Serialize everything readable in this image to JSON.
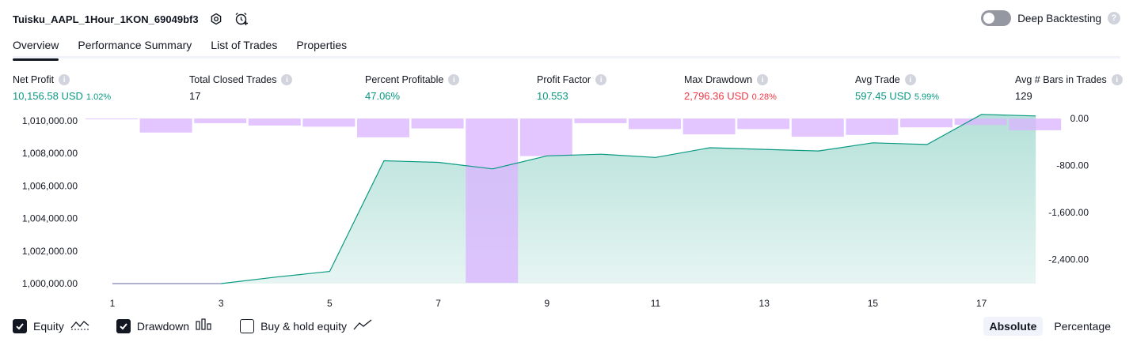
{
  "header": {
    "strategy_title": "Tuisku_AAPL_1Hour_1KON_69049bf3",
    "deep_backtesting_label": "Deep Backtesting",
    "help_glyph": "?"
  },
  "tabs": [
    {
      "label": "Overview",
      "active": true
    },
    {
      "label": "Performance Summary",
      "active": false
    },
    {
      "label": "List of Trades",
      "active": false
    },
    {
      "label": "Properties",
      "active": false
    }
  ],
  "metrics": [
    {
      "label": "Net Profit",
      "value": "10,156.58 USD",
      "pct": "1.02%",
      "color": "#089981"
    },
    {
      "label": "Total Closed Trades",
      "value": "17",
      "pct": "",
      "color": "#131722"
    },
    {
      "label": "Percent Profitable",
      "value": "47.06%",
      "pct": "",
      "color": "#089981"
    },
    {
      "label": "Profit Factor",
      "value": "10.553",
      "pct": "",
      "color": "#089981"
    },
    {
      "label": "Max Drawdown",
      "value": "2,796.36 USD",
      "pct": "0.28%",
      "color": "#f23645"
    },
    {
      "label": "Avg Trade",
      "value": "597.45 USD",
      "pct": "5.99%",
      "color": "#089981"
    },
    {
      "label": "Avg # Bars in Trades",
      "value": "129",
      "pct": "",
      "color": "#131722"
    }
  ],
  "chart_data": {
    "type": "line",
    "x_ticks": [
      "1",
      "3",
      "5",
      "7",
      "9",
      "11",
      "13",
      "15",
      "17"
    ],
    "left_axis": {
      "ticks": [
        "1,010,000.00",
        "1,008,000.00",
        "1,006,000.00",
        "1,004,000.00",
        "1,002,000.00",
        "1,000,000.00"
      ],
      "ylim": [
        1000000,
        1010000
      ]
    },
    "right_axis": {
      "ticks": [
        "0.00",
        "-800.00",
        "-1,600.00",
        "-2,400.00"
      ],
      "ylim": [
        -2800,
        0
      ]
    },
    "series": [
      {
        "name": "Equity",
        "color": "#089981",
        "x": [
          0,
          1,
          2,
          3,
          4,
          5,
          6,
          7,
          8,
          9,
          10,
          11,
          12,
          13,
          14,
          15,
          16,
          17,
          18
        ],
        "y": [
          1000000,
          1000000,
          1000000,
          1000000,
          1000400,
          1000750,
          1007550,
          1007450,
          1007050,
          1007850,
          1007950,
          1007750,
          1008350,
          1008250,
          1008150,
          1008650,
          1008550,
          1010400,
          1010300
        ]
      },
      {
        "name": "Drawdown",
        "color": "#d9b3ff",
        "x": [
          1,
          2,
          3,
          4,
          5,
          6,
          7,
          8,
          9,
          10,
          11,
          12,
          13,
          14,
          15,
          16,
          17,
          18
        ],
        "y": [
          -10,
          -240,
          -80,
          -120,
          -140,
          -320,
          -170,
          -2796,
          -640,
          -80,
          -180,
          -270,
          -180,
          -310,
          -280,
          -150,
          -110,
          -200
        ]
      }
    ]
  },
  "legend": {
    "equity_label": "Equity",
    "drawdown_label": "Drawdown",
    "buyhold_label": "Buy & hold equity",
    "absolute_label": "Absolute",
    "percentage_label": "Percentage"
  }
}
